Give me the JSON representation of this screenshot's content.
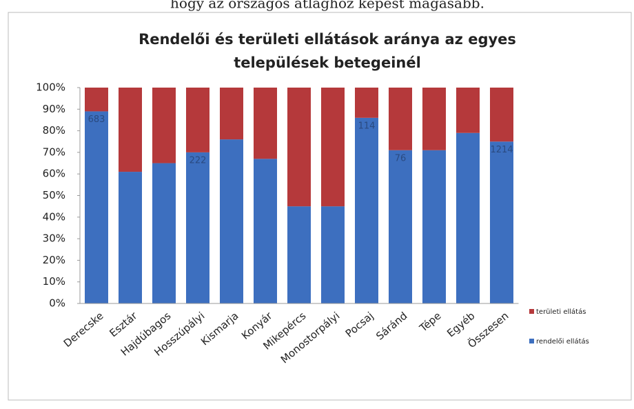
{
  "header_text": "hogy az országos átlaghoz képest magasabb.",
  "chart_data": {
    "type": "stacked_bar_100",
    "title": [
      "Rendelői és területi ellátások aránya az egyes",
      "települések betegeinél"
    ],
    "categories": [
      "Derecske",
      "Esztár",
      "Hajdúbagos",
      "Hosszúpályi",
      "Kismarja",
      "Konyár",
      "Mikepércs",
      "Monostorpályi",
      "Pocsaj",
      "Sáránd",
      "Tépe",
      "Egyéb",
      "Összesen"
    ],
    "series": [
      {
        "name": "rendelői ellátás",
        "color": "#3d6fbf",
        "values": [
          89,
          61,
          65,
          70,
          76,
          67,
          45,
          45,
          86,
          71,
          71,
          79,
          75
        ],
        "count_labels": [
          "683",
          null,
          null,
          "222",
          null,
          null,
          null,
          null,
          "114",
          "76",
          null,
          null,
          "1214"
        ]
      },
      {
        "name": "területi ellátás",
        "color": "#b5393b",
        "values": [
          11,
          39,
          35,
          30,
          24,
          33,
          55,
          55,
          14,
          29,
          29,
          21,
          25
        ]
      }
    ],
    "ylim": [
      0,
      100
    ],
    "yticks": [
      {
        "value": 0,
        "label": "0%"
      },
      {
        "value": 10,
        "label": "10%"
      },
      {
        "value": 20,
        "label": "20%"
      },
      {
        "value": 30,
        "label": "30%"
      },
      {
        "value": 40,
        "label": "40%"
      },
      {
        "value": 50,
        "label": "50%"
      },
      {
        "value": 60,
        "label": "60%"
      },
      {
        "value": 70,
        "label": "70%"
      },
      {
        "value": 80,
        "label": "80%"
      },
      {
        "value": 90,
        "label": "90%"
      },
      {
        "value": 100,
        "label": "100%"
      }
    ],
    "legend": "right"
  }
}
